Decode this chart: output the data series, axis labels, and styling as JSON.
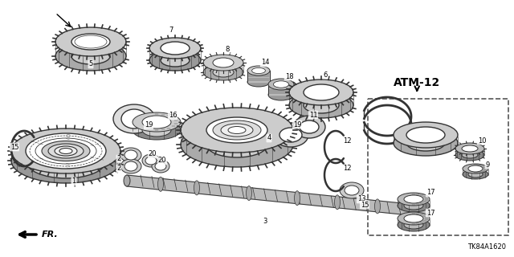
{
  "background_color": "#ffffff",
  "diagram_code": "TK84A1620",
  "atm_label": "ATM-12",
  "fr_label": "FR.",
  "ec": "#333333",
  "figsize": [
    6.4,
    3.2
  ],
  "dpi": 100
}
